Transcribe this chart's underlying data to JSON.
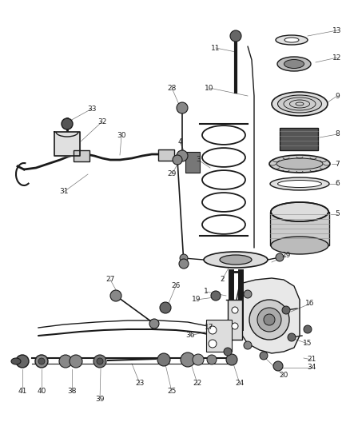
{
  "bg_color": "#ffffff",
  "lc": "#1a1a1a",
  "fc_dark": "#333333",
  "fc_mid": "#888888",
  "fc_light": "#cccccc",
  "fc_white": "#ffffff",
  "label_fs": 6.5,
  "figsize": [
    4.39,
    5.33
  ],
  "dpi": 100,
  "xlim": [
    0,
    439
  ],
  "ylim": [
    0,
    533
  ]
}
